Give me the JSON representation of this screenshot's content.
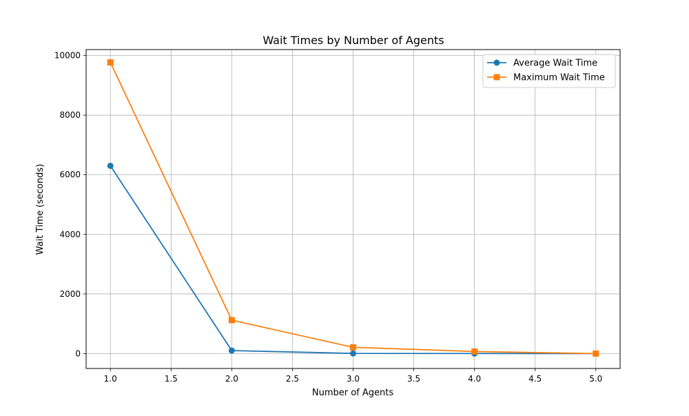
{
  "chart_data": {
    "type": "line",
    "title": "Wait Times by Number of Agents",
    "xlabel": "Number of Agents",
    "ylabel": "Wait Time (seconds)",
    "xlim": [
      0.8,
      5.2
    ],
    "ylim": [
      -500,
      10200
    ],
    "x_ticks": [
      1.0,
      1.5,
      2.0,
      2.5,
      3.0,
      3.5,
      4.0,
      4.5,
      5.0
    ],
    "x_tick_labels": [
      "1.0",
      "1.5",
      "2.0",
      "2.5",
      "3.0",
      "3.5",
      "4.0",
      "4.5",
      "5.0"
    ],
    "y_ticks": [
      0,
      2000,
      4000,
      6000,
      8000,
      10000
    ],
    "y_tick_labels": [
      "0",
      "2000",
      "4000",
      "6000",
      "8000",
      "10000"
    ],
    "grid": true,
    "legend_position": "top-right",
    "x": [
      1,
      2,
      3,
      4,
      5
    ],
    "series": [
      {
        "name": "Average Wait Time",
        "values": [
          6300,
          100,
          5,
          2,
          0
        ],
        "color": "#1f77b4",
        "marker": "circle"
      },
      {
        "name": "Maximum Wait Time",
        "values": [
          9770,
          1120,
          210,
          70,
          0
        ],
        "color": "#ff7f0e",
        "marker": "square"
      }
    ]
  }
}
